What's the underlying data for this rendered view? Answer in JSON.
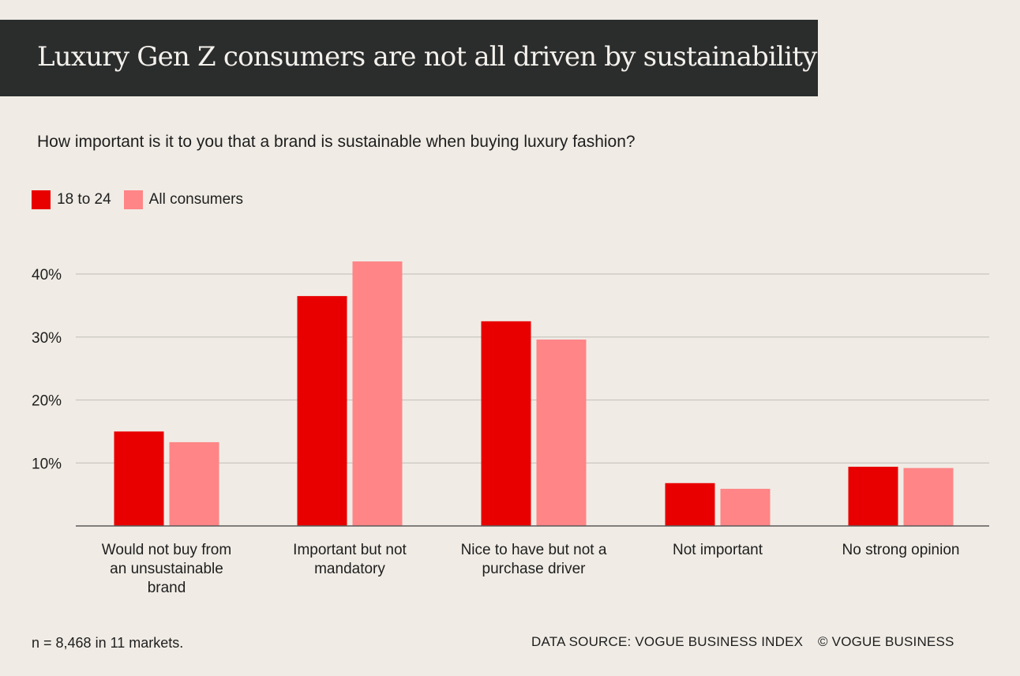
{
  "header": {
    "title": "Luxury Gen Z consumers are not all driven by sustainability"
  },
  "colors": {
    "series_18_24": "#e80000",
    "series_all": "#ff8587",
    "grid": "#c9c5bf",
    "axis": "#5a5a5a"
  },
  "chart_data": {
    "type": "bar",
    "title": "Luxury Gen Z consumers are not all driven by sustainability",
    "subtitle": "How important is it to you that a brand is sustainable when buying luxury fashion?",
    "xlabel": "",
    "ylabel": "",
    "ylim": [
      0,
      40
    ],
    "yticks": [
      10,
      20,
      30,
      40
    ],
    "ytick_labels": [
      "10%",
      "20%",
      "30%",
      "40%"
    ],
    "grid": true,
    "legend_position": "top-left",
    "categories": [
      "Would not buy from an unsustainable brand",
      "Important but not mandatory",
      "Nice to have but not a purchase driver",
      "Not important",
      "No strong opinion"
    ],
    "category_lines": [
      [
        "Would not buy from",
        "an unsustainable",
        "brand"
      ],
      [
        "Important but not",
        "mandatory"
      ],
      [
        "Nice to have but not a",
        "purchase driver"
      ],
      [
        "Not important"
      ],
      [
        "No strong opinion"
      ]
    ],
    "series": [
      {
        "name": "18 to 24",
        "values": [
          15,
          36.5,
          32.5,
          6.8,
          9.4
        ]
      },
      {
        "name": "All consumers",
        "values": [
          13.3,
          42,
          29.6,
          5.9,
          9.2
        ]
      }
    ]
  },
  "footer": {
    "note": "n = 8,468 in 11 markets.",
    "source": "DATA SOURCE:  VOGUE BUSINESS INDEX",
    "copyright": "© VOGUE BUSINESS"
  }
}
